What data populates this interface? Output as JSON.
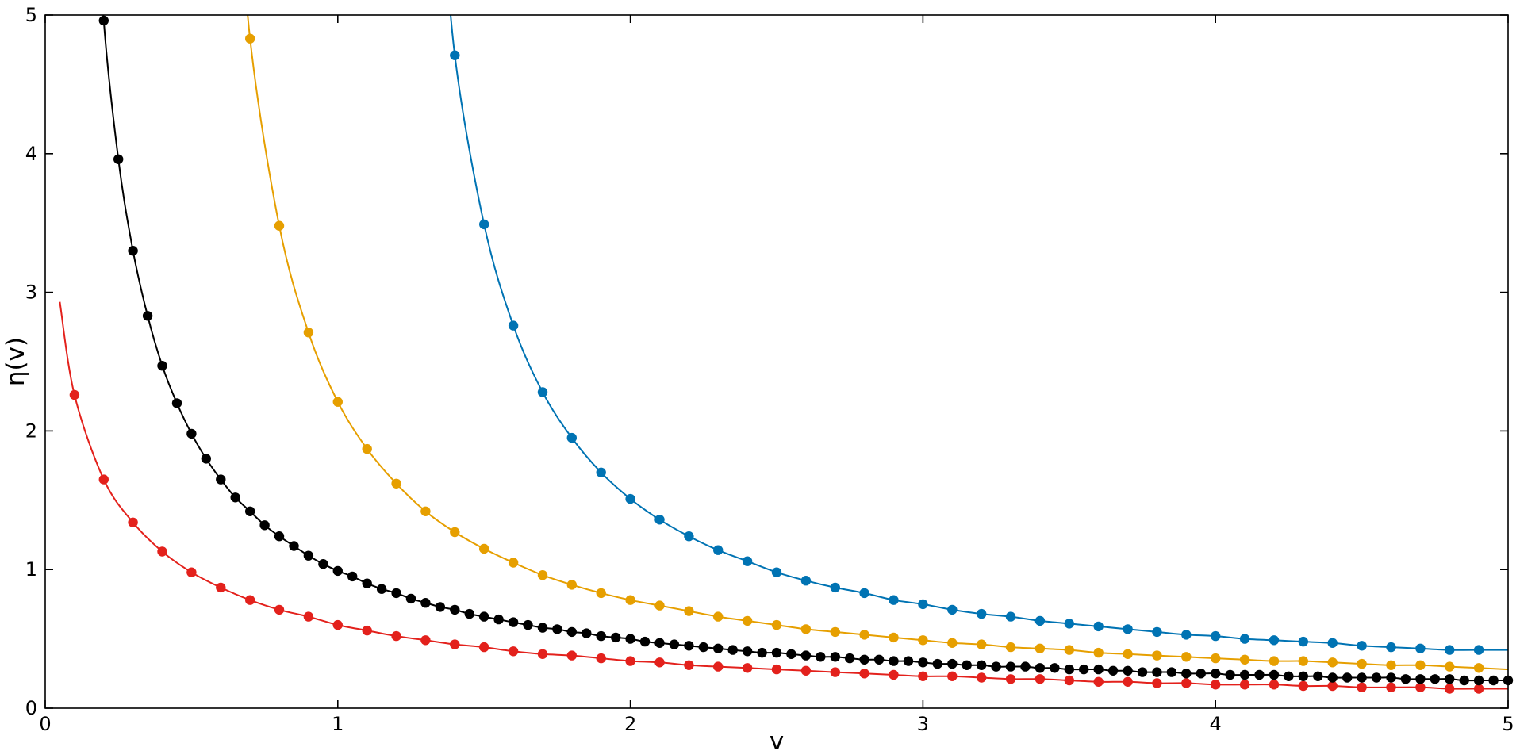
{
  "chart_data": {
    "type": "scatter",
    "title": "",
    "xlabel": "v",
    "ylabel": "η(v)",
    "xlim": [
      0,
      5
    ],
    "ylim": [
      0,
      5
    ],
    "grid": false,
    "legend": "none",
    "x_ticks": [
      "0",
      "1",
      "2",
      "3",
      "4",
      "5"
    ],
    "y_ticks": [
      "0",
      "1",
      "2",
      "3",
      "4",
      "5"
    ],
    "series": [
      {
        "color": "#e3211c",
        "style": "line+markers",
        "x": [
          0.1,
          0.2,
          0.3,
          0.4,
          0.5,
          0.6,
          0.7,
          0.8,
          0.9,
          1.0,
          1.1,
          1.2,
          1.3,
          1.4,
          1.5,
          1.6,
          1.7,
          1.8,
          1.9,
          2.0,
          2.1,
          2.2,
          2.3,
          2.4,
          2.5,
          2.6,
          2.7,
          2.8,
          2.9,
          3.0,
          3.1,
          3.2,
          3.3,
          3.4,
          3.5,
          3.6,
          3.7,
          3.8,
          3.9,
          4.0,
          4.1,
          4.2,
          4.3,
          4.4,
          4.5,
          4.6,
          4.7,
          4.8,
          4.9
        ],
        "y": [
          2.26,
          1.65,
          1.34,
          1.13,
          0.98,
          0.87,
          0.78,
          0.71,
          0.66,
          0.6,
          0.56,
          0.52,
          0.49,
          0.46,
          0.44,
          0.41,
          0.39,
          0.38,
          0.36,
          0.34,
          0.33,
          0.31,
          0.3,
          0.29,
          0.28,
          0.27,
          0.26,
          0.25,
          0.24,
          0.23,
          0.23,
          0.22,
          0.21,
          0.21,
          0.2,
          0.19,
          0.19,
          0.18,
          0.18,
          0.17,
          0.17,
          0.17,
          0.16,
          0.16,
          0.15,
          0.15,
          0.15,
          0.14,
          0.14
        ]
      },
      {
        "color": "#000000",
        "style": "line+markers",
        "x": [
          0.2,
          0.25,
          0.3,
          0.35,
          0.4,
          0.45,
          0.5,
          0.55,
          0.6,
          0.65,
          0.7,
          0.75,
          0.8,
          0.85,
          0.9,
          0.95,
          1.0,
          1.05,
          1.1,
          1.15,
          1.2,
          1.25,
          1.3,
          1.35,
          1.4,
          1.45,
          1.5,
          1.55,
          1.6,
          1.65,
          1.7,
          1.75,
          1.8,
          1.85,
          1.9,
          1.95,
          2.0,
          2.05,
          2.1,
          2.15,
          2.2,
          2.25,
          2.3,
          2.35,
          2.4,
          2.45,
          2.5,
          2.55,
          2.6,
          2.65,
          2.7,
          2.75,
          2.8,
          2.85,
          2.9,
          2.95,
          3.0,
          3.05,
          3.1,
          3.15,
          3.2,
          3.25,
          3.3,
          3.35,
          3.4,
          3.45,
          3.5,
          3.55,
          3.6,
          3.65,
          3.7,
          3.75,
          3.8,
          3.85,
          3.9,
          3.95,
          4.0,
          4.05,
          4.1,
          4.15,
          4.2,
          4.25,
          4.3,
          4.35,
          4.4,
          4.45,
          4.5,
          4.55,
          4.6,
          4.65,
          4.7,
          4.75,
          4.8,
          4.85,
          4.9,
          4.95,
          5.0
        ],
        "y": [
          4.96,
          3.96,
          3.3,
          2.83,
          2.47,
          2.2,
          1.98,
          1.8,
          1.65,
          1.52,
          1.42,
          1.32,
          1.24,
          1.17,
          1.1,
          1.04,
          0.99,
          0.95,
          0.9,
          0.86,
          0.83,
          0.79,
          0.76,
          0.73,
          0.71,
          0.68,
          0.66,
          0.64,
          0.62,
          0.6,
          0.58,
          0.57,
          0.55,
          0.54,
          0.52,
          0.51,
          0.5,
          0.48,
          0.47,
          0.46,
          0.45,
          0.44,
          0.43,
          0.42,
          0.41,
          0.4,
          0.4,
          0.39,
          0.38,
          0.37,
          0.37,
          0.36,
          0.35,
          0.35,
          0.34,
          0.34,
          0.33,
          0.32,
          0.32,
          0.31,
          0.31,
          0.3,
          0.3,
          0.3,
          0.29,
          0.29,
          0.28,
          0.28,
          0.28,
          0.27,
          0.27,
          0.26,
          0.26,
          0.26,
          0.25,
          0.25,
          0.25,
          0.24,
          0.24,
          0.24,
          0.24,
          0.23,
          0.23,
          0.23,
          0.22,
          0.22,
          0.22,
          0.22,
          0.22,
          0.21,
          0.21,
          0.21,
          0.21,
          0.2,
          0.2,
          0.2,
          0.2
        ]
      },
      {
        "color": "#e69f00",
        "style": "line+markers",
        "x": [
          0.7,
          0.8,
          0.9,
          1.0,
          1.1,
          1.2,
          1.3,
          1.4,
          1.5,
          1.6,
          1.7,
          1.8,
          1.9,
          2.0,
          2.1,
          2.2,
          2.3,
          2.4,
          2.5,
          2.6,
          2.7,
          2.8,
          2.9,
          3.0,
          3.1,
          3.2,
          3.3,
          3.4,
          3.5,
          3.6,
          3.7,
          3.8,
          3.9,
          4.0,
          4.1,
          4.2,
          4.3,
          4.4,
          4.5,
          4.6,
          4.7,
          4.8,
          4.9
        ],
        "y": [
          4.83,
          3.48,
          2.71,
          2.21,
          1.87,
          1.62,
          1.42,
          1.27,
          1.15,
          1.05,
          0.96,
          0.89,
          0.83,
          0.78,
          0.74,
          0.7,
          0.66,
          0.63,
          0.6,
          0.57,
          0.55,
          0.53,
          0.51,
          0.49,
          0.47,
          0.46,
          0.44,
          0.43,
          0.42,
          0.4,
          0.39,
          0.38,
          0.37,
          0.36,
          0.35,
          0.34,
          0.34,
          0.33,
          0.32,
          0.31,
          0.31,
          0.3,
          0.29
        ]
      },
      {
        "color": "#0073b3",
        "style": "line+markers",
        "x": [
          1.4,
          1.5,
          1.6,
          1.7,
          1.8,
          1.9,
          2.0,
          2.1,
          2.2,
          2.3,
          2.4,
          2.5,
          2.6,
          2.7,
          2.8,
          2.9,
          3.0,
          3.1,
          3.2,
          3.3,
          3.4,
          3.5,
          3.6,
          3.7,
          3.8,
          3.9,
          4.0,
          4.1,
          4.2,
          4.3,
          4.4,
          4.5,
          4.6,
          4.7,
          4.8,
          4.9
        ],
        "y": [
          4.71,
          3.49,
          2.76,
          2.28,
          1.95,
          1.7,
          1.51,
          1.36,
          1.24,
          1.14,
          1.06,
          0.98,
          0.92,
          0.87,
          0.83,
          0.78,
          0.75,
          0.71,
          0.68,
          0.66,
          0.63,
          0.61,
          0.59,
          0.57,
          0.55,
          0.53,
          0.52,
          0.5,
          0.49,
          0.48,
          0.47,
          0.45,
          0.44,
          0.43,
          0.42,
          0.42
        ]
      }
    ]
  }
}
